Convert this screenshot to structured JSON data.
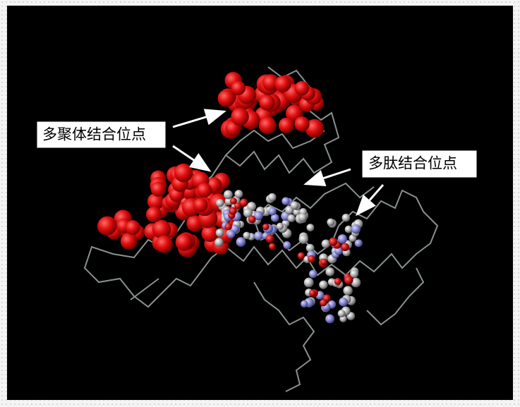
{
  "labels": [
    "多聚体结合位点",
    "多肽结合位点"
  ]
}
